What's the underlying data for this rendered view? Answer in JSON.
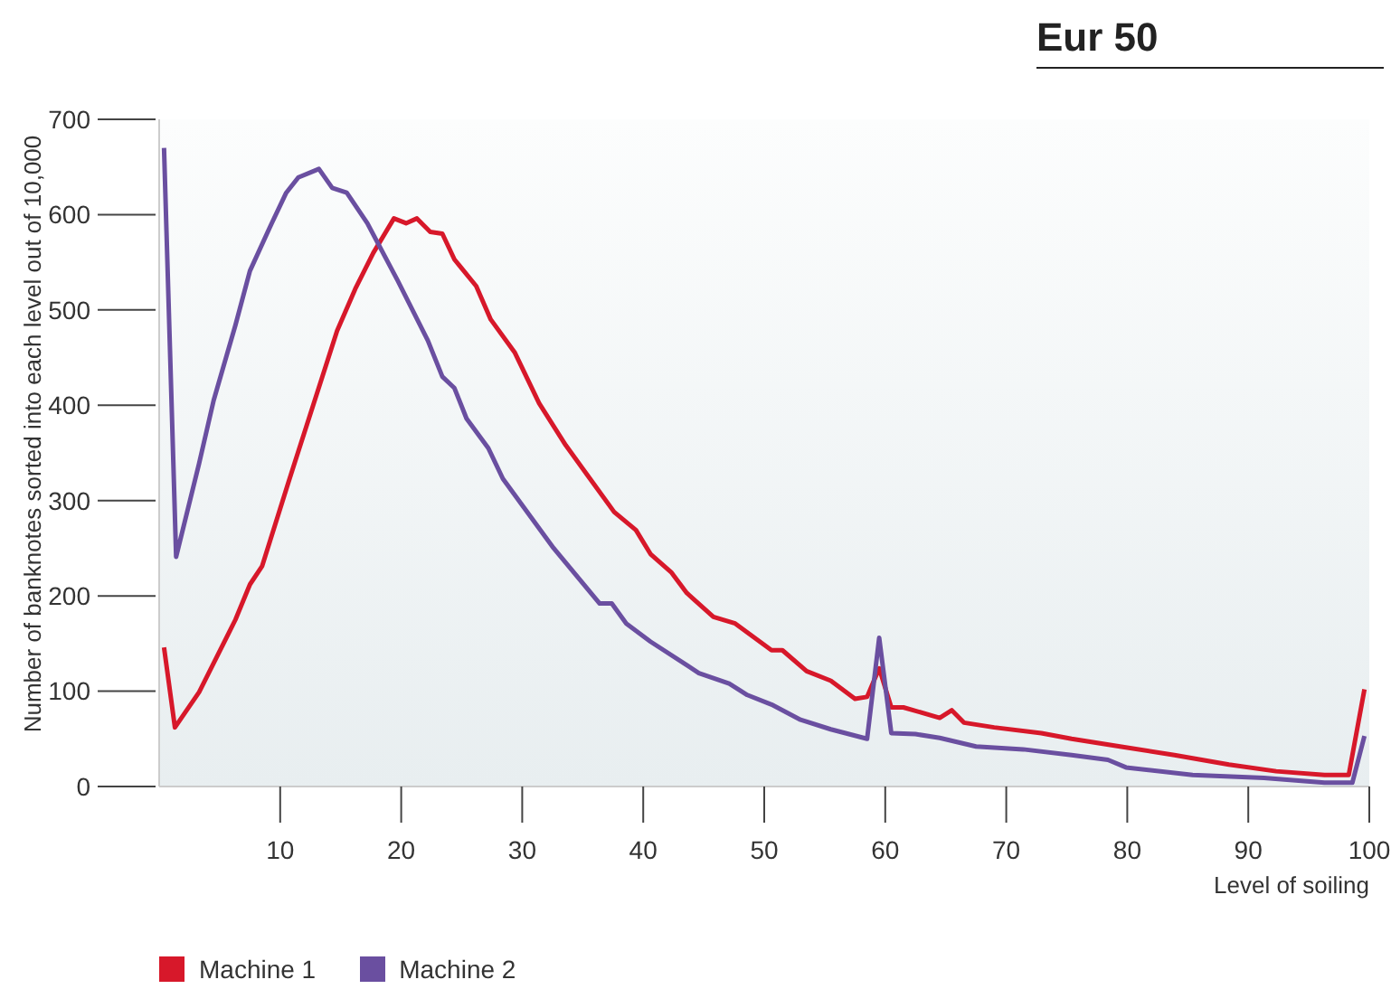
{
  "chart_data": {
    "type": "line",
    "title": "Eur 50",
    "xlabel": "Level of soiling",
    "ylabel": "Number of banknotes sorted into each level out of 10,000",
    "xlim": [
      0,
      100
    ],
    "xticks": [
      10,
      20,
      30,
      40,
      50,
      60,
      70,
      80,
      90,
      100
    ],
    "ylim": [
      0,
      700
    ],
    "yticks": [
      0,
      100,
      200,
      300,
      400,
      500,
      600,
      700
    ],
    "grid": false,
    "legend": "bottom",
    "marker": "none",
    "line_style": "solid",
    "series": [
      {
        "name": "Machine 1",
        "color": "#d7182a",
        "x": [
          0.4,
          1.3,
          3.3,
          6.3,
          7.5,
          8.5,
          10.7,
          14.7,
          16.2,
          17.7,
          19.4,
          20.4,
          21.3,
          22.4,
          23.4,
          24.4,
          26.2,
          27.4,
          29.4,
          31.4,
          33.6,
          35.6,
          37.6,
          39.4,
          40.6,
          42.3,
          43.6,
          45.8,
          47.6,
          50.6,
          51.5,
          53.5,
          55.5,
          57.5,
          58.5,
          59.5,
          60.5,
          61.5,
          64.5,
          65.5,
          66.5,
          69,
          72.9,
          75.4,
          79.4,
          83.9,
          88.4,
          92.3,
          96.3,
          98.3,
          99.6
        ],
        "values": [
          146,
          62,
          99,
          175,
          212,
          231,
          320,
          478,
          522,
          560,
          596,
          591,
          596,
          582,
          580,
          553,
          525,
          490,
          455,
          402,
          358,
          323,
          288,
          269,
          244,
          225,
          203,
          178,
          171,
          143,
          143,
          121,
          111,
          92,
          94,
          124,
          83,
          83,
          72,
          80,
          67,
          62,
          56,
          50,
          42,
          33,
          23,
          16,
          12,
          12,
          102
        ]
      },
      {
        "name": "Machine 2",
        "color": "#6a4fa0",
        "x": [
          0.4,
          1.4,
          3.3,
          4.5,
          6.3,
          7.5,
          9.3,
          10.5,
          11.5,
          13.2,
          14.3,
          15.5,
          17.2,
          19.7,
          22.2,
          23.4,
          24.4,
          25.4,
          27.2,
          28.4,
          32.6,
          36.4,
          37.4,
          38.6,
          40.6,
          44.6,
          47.1,
          48.6,
          50.6,
          53,
          55.5,
          58.5,
          59.5,
          60.5,
          62.5,
          64.5,
          67.5,
          71.4,
          75.4,
          78.4,
          79.9,
          85.4,
          91.3,
          96.3,
          98.6,
          99.6
        ],
        "values": [
          670,
          241,
          339,
          405,
          484,
          541,
          591,
          623,
          639,
          648,
          628,
          623,
          591,
          531,
          468,
          430,
          418,
          386,
          355,
          323,
          250,
          192,
          192,
          171,
          152,
          119,
          108,
          96,
          86,
          70,
          60,
          50,
          156,
          56,
          55,
          51,
          42,
          39,
          33,
          28,
          20,
          12,
          9,
          4,
          4,
          53
        ]
      }
    ]
  }
}
